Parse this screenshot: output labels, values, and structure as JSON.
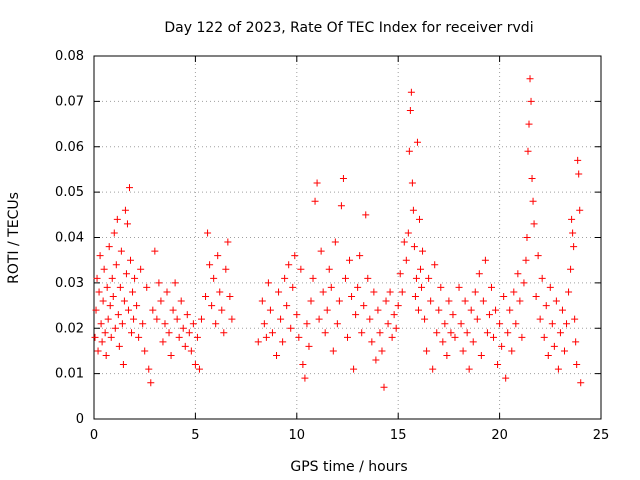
{
  "chart_data": {
    "type": "scatter",
    "title": "Day 122 of 2023, Rate Of TEC Index for receiver rvdi",
    "xlabel": "GPS time / hours",
    "ylabel": "ROTI / TECUs",
    "xlim": [
      0,
      25
    ],
    "ylim": [
      0,
      0.08
    ],
    "x_ticks": [
      0,
      5,
      10,
      15,
      20,
      25
    ],
    "y_ticks": [
      0,
      0.01,
      0.02,
      0.03,
      0.04,
      0.05,
      0.06,
      0.07,
      0.08
    ],
    "x_tick_labels": [
      "0",
      "5",
      "10",
      "15",
      "20",
      "25"
    ],
    "y_tick_labels": [
      "0",
      "0.01",
      "0.02",
      "0.03",
      "0.04",
      "0.05",
      "0.06",
      "0.07",
      "0.08"
    ],
    "grid": true,
    "marker": "+",
    "color": "#ff0000",
    "series": [
      {
        "name": "ROTI",
        "points": [
          [
            0.05,
            0.018
          ],
          [
            0.1,
            0.024
          ],
          [
            0.15,
            0.031
          ],
          [
            0.2,
            0.015
          ],
          [
            0.25,
            0.028
          ],
          [
            0.3,
            0.036
          ],
          [
            0.35,
            0.021
          ],
          [
            0.4,
            0.017
          ],
          [
            0.45,
            0.026
          ],
          [
            0.5,
            0.033
          ],
          [
            0.55,
            0.019
          ],
          [
            0.6,
            0.014
          ],
          [
            0.65,
            0.029
          ],
          [
            0.7,
            0.022
          ],
          [
            0.75,
            0.038
          ],
          [
            0.8,
            0.025
          ],
          [
            0.85,
            0.018
          ],
          [
            0.9,
            0.031
          ],
          [
            0.95,
            0.027
          ],
          [
            1.0,
            0.041
          ],
          [
            1.05,
            0.02
          ],
          [
            1.1,
            0.034
          ],
          [
            1.15,
            0.044
          ],
          [
            1.2,
            0.023
          ],
          [
            1.25,
            0.016
          ],
          [
            1.3,
            0.029
          ],
          [
            1.35,
            0.037
          ],
          [
            1.4,
            0.021
          ],
          [
            1.45,
            0.012
          ],
          [
            1.5,
            0.026
          ],
          [
            1.55,
            0.046
          ],
          [
            1.6,
            0.032
          ],
          [
            1.65,
            0.043
          ],
          [
            1.7,
            0.024
          ],
          [
            1.75,
            0.051
          ],
          [
            1.8,
            0.035
          ],
          [
            1.85,
            0.019
          ],
          [
            1.9,
            0.028
          ],
          [
            1.95,
            0.022
          ],
          [
            2.0,
            0.031
          ],
          [
            2.1,
            0.025
          ],
          [
            2.2,
            0.018
          ],
          [
            2.3,
            0.033
          ],
          [
            2.4,
            0.021
          ],
          [
            2.5,
            0.015
          ],
          [
            2.6,
            0.029
          ],
          [
            2.7,
            0.011
          ],
          [
            2.8,
            0.008
          ],
          [
            2.9,
            0.024
          ],
          [
            3.0,
            0.037
          ],
          [
            3.1,
            0.022
          ],
          [
            3.2,
            0.03
          ],
          [
            3.3,
            0.026
          ],
          [
            3.4,
            0.017
          ],
          [
            3.5,
            0.021
          ],
          [
            3.6,
            0.028
          ],
          [
            3.7,
            0.019
          ],
          [
            3.8,
            0.014
          ],
          [
            3.9,
            0.024
          ],
          [
            4.0,
            0.03
          ],
          [
            4.1,
            0.022
          ],
          [
            4.2,
            0.018
          ],
          [
            4.3,
            0.026
          ],
          [
            4.4,
            0.02
          ],
          [
            4.5,
            0.016
          ],
          [
            4.6,
            0.023
          ],
          [
            4.7,
            0.019
          ],
          [
            4.8,
            0.015
          ],
          [
            4.9,
            0.021
          ],
          [
            5.0,
            0.012
          ],
          [
            5.1,
            0.018
          ],
          [
            5.2,
            0.011
          ],
          [
            5.3,
            0.022
          ],
          [
            5.5,
            0.027
          ],
          [
            5.6,
            0.041
          ],
          [
            5.7,
            0.034
          ],
          [
            5.8,
            0.025
          ],
          [
            5.9,
            0.031
          ],
          [
            6.0,
            0.021
          ],
          [
            6.1,
            0.036
          ],
          [
            6.2,
            0.028
          ],
          [
            6.3,
            0.024
          ],
          [
            6.4,
            0.019
          ],
          [
            6.5,
            0.033
          ],
          [
            6.6,
            0.039
          ],
          [
            6.7,
            0.027
          ],
          [
            6.8,
            0.022
          ],
          [
            8.1,
            0.017
          ],
          [
            8.3,
            0.026
          ],
          [
            8.4,
            0.021
          ],
          [
            8.5,
            0.018
          ],
          [
            8.6,
            0.03
          ],
          [
            8.7,
            0.024
          ],
          [
            8.8,
            0.019
          ],
          [
            9.0,
            0.014
          ],
          [
            9.1,
            0.028
          ],
          [
            9.2,
            0.022
          ],
          [
            9.3,
            0.017
          ],
          [
            9.4,
            0.031
          ],
          [
            9.5,
            0.025
          ],
          [
            9.6,
            0.034
          ],
          [
            9.7,
            0.02
          ],
          [
            9.8,
            0.029
          ],
          [
            9.9,
            0.036
          ],
          [
            10.0,
            0.023
          ],
          [
            10.1,
            0.018
          ],
          [
            10.2,
            0.033
          ],
          [
            10.3,
            0.012
          ],
          [
            10.4,
            0.009
          ],
          [
            10.5,
            0.021
          ],
          [
            10.6,
            0.016
          ],
          [
            10.7,
            0.026
          ],
          [
            10.8,
            0.031
          ],
          [
            10.9,
            0.048
          ],
          [
            11.0,
            0.052
          ],
          [
            11.1,
            0.022
          ],
          [
            11.2,
            0.037
          ],
          [
            11.3,
            0.028
          ],
          [
            11.4,
            0.019
          ],
          [
            11.5,
            0.024
          ],
          [
            11.6,
            0.033
          ],
          [
            11.7,
            0.029
          ],
          [
            11.8,
            0.015
          ],
          [
            11.9,
            0.039
          ],
          [
            12.0,
            0.021
          ],
          [
            12.1,
            0.026
          ],
          [
            12.2,
            0.047
          ],
          [
            12.3,
            0.053
          ],
          [
            12.4,
            0.031
          ],
          [
            12.5,
            0.018
          ],
          [
            12.6,
            0.035
          ],
          [
            12.7,
            0.027
          ],
          [
            12.8,
            0.011
          ],
          [
            12.9,
            0.023
          ],
          [
            13.0,
            0.029
          ],
          [
            13.1,
            0.036
          ],
          [
            13.2,
            0.019
          ],
          [
            13.3,
            0.025
          ],
          [
            13.4,
            0.045
          ],
          [
            13.5,
            0.031
          ],
          [
            13.6,
            0.022
          ],
          [
            13.7,
            0.017
          ],
          [
            13.8,
            0.028
          ],
          [
            13.9,
            0.013
          ],
          [
            14.0,
            0.024
          ],
          [
            14.1,
            0.019
          ],
          [
            14.2,
            0.015
          ],
          [
            14.3,
            0.007
          ],
          [
            14.4,
            0.026
          ],
          [
            14.5,
            0.021
          ],
          [
            14.6,
            0.028
          ],
          [
            14.7,
            0.018
          ],
          [
            14.8,
            0.023
          ],
          [
            14.9,
            0.02
          ],
          [
            15.0,
            0.025
          ],
          [
            15.1,
            0.032
          ],
          [
            15.2,
            0.028
          ],
          [
            15.3,
            0.039
          ],
          [
            15.4,
            0.035
          ],
          [
            15.5,
            0.041
          ],
          [
            15.55,
            0.059
          ],
          [
            15.6,
            0.068
          ],
          [
            15.65,
            0.072
          ],
          [
            15.7,
            0.052
          ],
          [
            15.75,
            0.046
          ],
          [
            15.8,
            0.038
          ],
          [
            15.85,
            0.027
          ],
          [
            15.9,
            0.031
          ],
          [
            15.95,
            0.061
          ],
          [
            16.0,
            0.024
          ],
          [
            16.05,
            0.044
          ],
          [
            16.1,
            0.033
          ],
          [
            16.15,
            0.029
          ],
          [
            16.2,
            0.037
          ],
          [
            16.3,
            0.022
          ],
          [
            16.4,
            0.015
          ],
          [
            16.5,
            0.031
          ],
          [
            16.6,
            0.026
          ],
          [
            16.7,
            0.011
          ],
          [
            16.8,
            0.034
          ],
          [
            16.9,
            0.019
          ],
          [
            17.0,
            0.024
          ],
          [
            17.1,
            0.029
          ],
          [
            17.2,
            0.017
          ],
          [
            17.3,
            0.021
          ],
          [
            17.4,
            0.014
          ],
          [
            17.5,
            0.026
          ],
          [
            17.6,
            0.019
          ],
          [
            17.7,
            0.023
          ],
          [
            17.8,
            0.018
          ],
          [
            18.0,
            0.029
          ],
          [
            18.1,
            0.021
          ],
          [
            18.2,
            0.015
          ],
          [
            18.3,
            0.026
          ],
          [
            18.4,
            0.019
          ],
          [
            18.5,
            0.011
          ],
          [
            18.6,
            0.024
          ],
          [
            18.7,
            0.017
          ],
          [
            18.8,
            0.028
          ],
          [
            18.9,
            0.022
          ],
          [
            19.0,
            0.032
          ],
          [
            19.1,
            0.014
          ],
          [
            19.2,
            0.026
          ],
          [
            19.3,
            0.035
          ],
          [
            19.4,
            0.019
          ],
          [
            19.5,
            0.023
          ],
          [
            19.6,
            0.029
          ],
          [
            19.7,
            0.018
          ],
          [
            19.8,
            0.024
          ],
          [
            19.9,
            0.012
          ],
          [
            20.0,
            0.021
          ],
          [
            20.1,
            0.016
          ],
          [
            20.2,
            0.027
          ],
          [
            20.3,
            0.009
          ],
          [
            20.4,
            0.019
          ],
          [
            20.5,
            0.024
          ],
          [
            20.6,
            0.015
          ],
          [
            20.7,
            0.028
          ],
          [
            20.8,
            0.021
          ],
          [
            20.9,
            0.032
          ],
          [
            21.0,
            0.026
          ],
          [
            21.1,
            0.018
          ],
          [
            21.2,
            0.03
          ],
          [
            21.3,
            0.035
          ],
          [
            21.35,
            0.04
          ],
          [
            21.4,
            0.059
          ],
          [
            21.45,
            0.065
          ],
          [
            21.5,
            0.075
          ],
          [
            21.55,
            0.07
          ],
          [
            21.6,
            0.053
          ],
          [
            21.65,
            0.048
          ],
          [
            21.7,
            0.043
          ],
          [
            21.8,
            0.027
          ],
          [
            21.9,
            0.036
          ],
          [
            22.0,
            0.022
          ],
          [
            22.1,
            0.031
          ],
          [
            22.2,
            0.018
          ],
          [
            22.3,
            0.025
          ],
          [
            22.4,
            0.014
          ],
          [
            22.5,
            0.029
          ],
          [
            22.6,
            0.021
          ],
          [
            22.7,
            0.016
          ],
          [
            22.8,
            0.026
          ],
          [
            22.9,
            0.011
          ],
          [
            23.0,
            0.019
          ],
          [
            23.1,
            0.024
          ],
          [
            23.2,
            0.015
          ],
          [
            23.3,
            0.021
          ],
          [
            23.4,
            0.028
          ],
          [
            23.5,
            0.033
          ],
          [
            23.55,
            0.044
          ],
          [
            23.6,
            0.041
          ],
          [
            23.65,
            0.038
          ],
          [
            23.7,
            0.022
          ],
          [
            23.75,
            0.017
          ],
          [
            23.8,
            0.012
          ],
          [
            23.85,
            0.057
          ],
          [
            23.9,
            0.054
          ],
          [
            23.95,
            0.046
          ],
          [
            24.0,
            0.008
          ]
        ]
      }
    ]
  }
}
